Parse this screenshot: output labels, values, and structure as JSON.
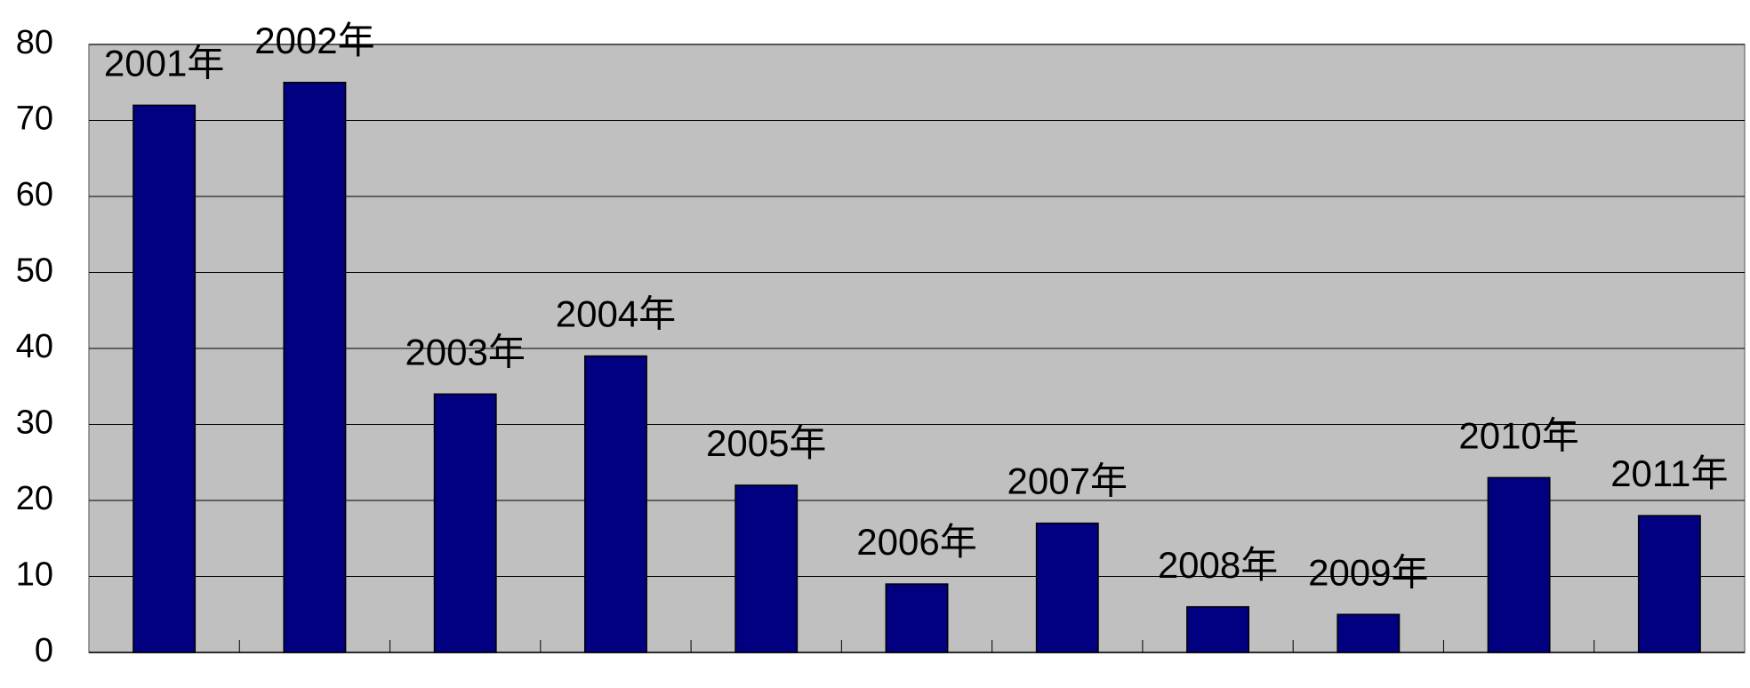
{
  "chart_data": {
    "type": "bar",
    "categories": [
      "2001年",
      "2002年",
      "2003年",
      "2004年",
      "2005年",
      "2006年",
      "2007年",
      "2008年",
      "2009年",
      "2010年",
      "2011年"
    ],
    "values": [
      72,
      75,
      34,
      39,
      22,
      9,
      17,
      6,
      5,
      23,
      18
    ],
    "color": "#000080",
    "ylim": [
      0,
      80
    ],
    "yticks": [
      0,
      10,
      20,
      30,
      40,
      50,
      60,
      70,
      80
    ],
    "grid": true
  }
}
